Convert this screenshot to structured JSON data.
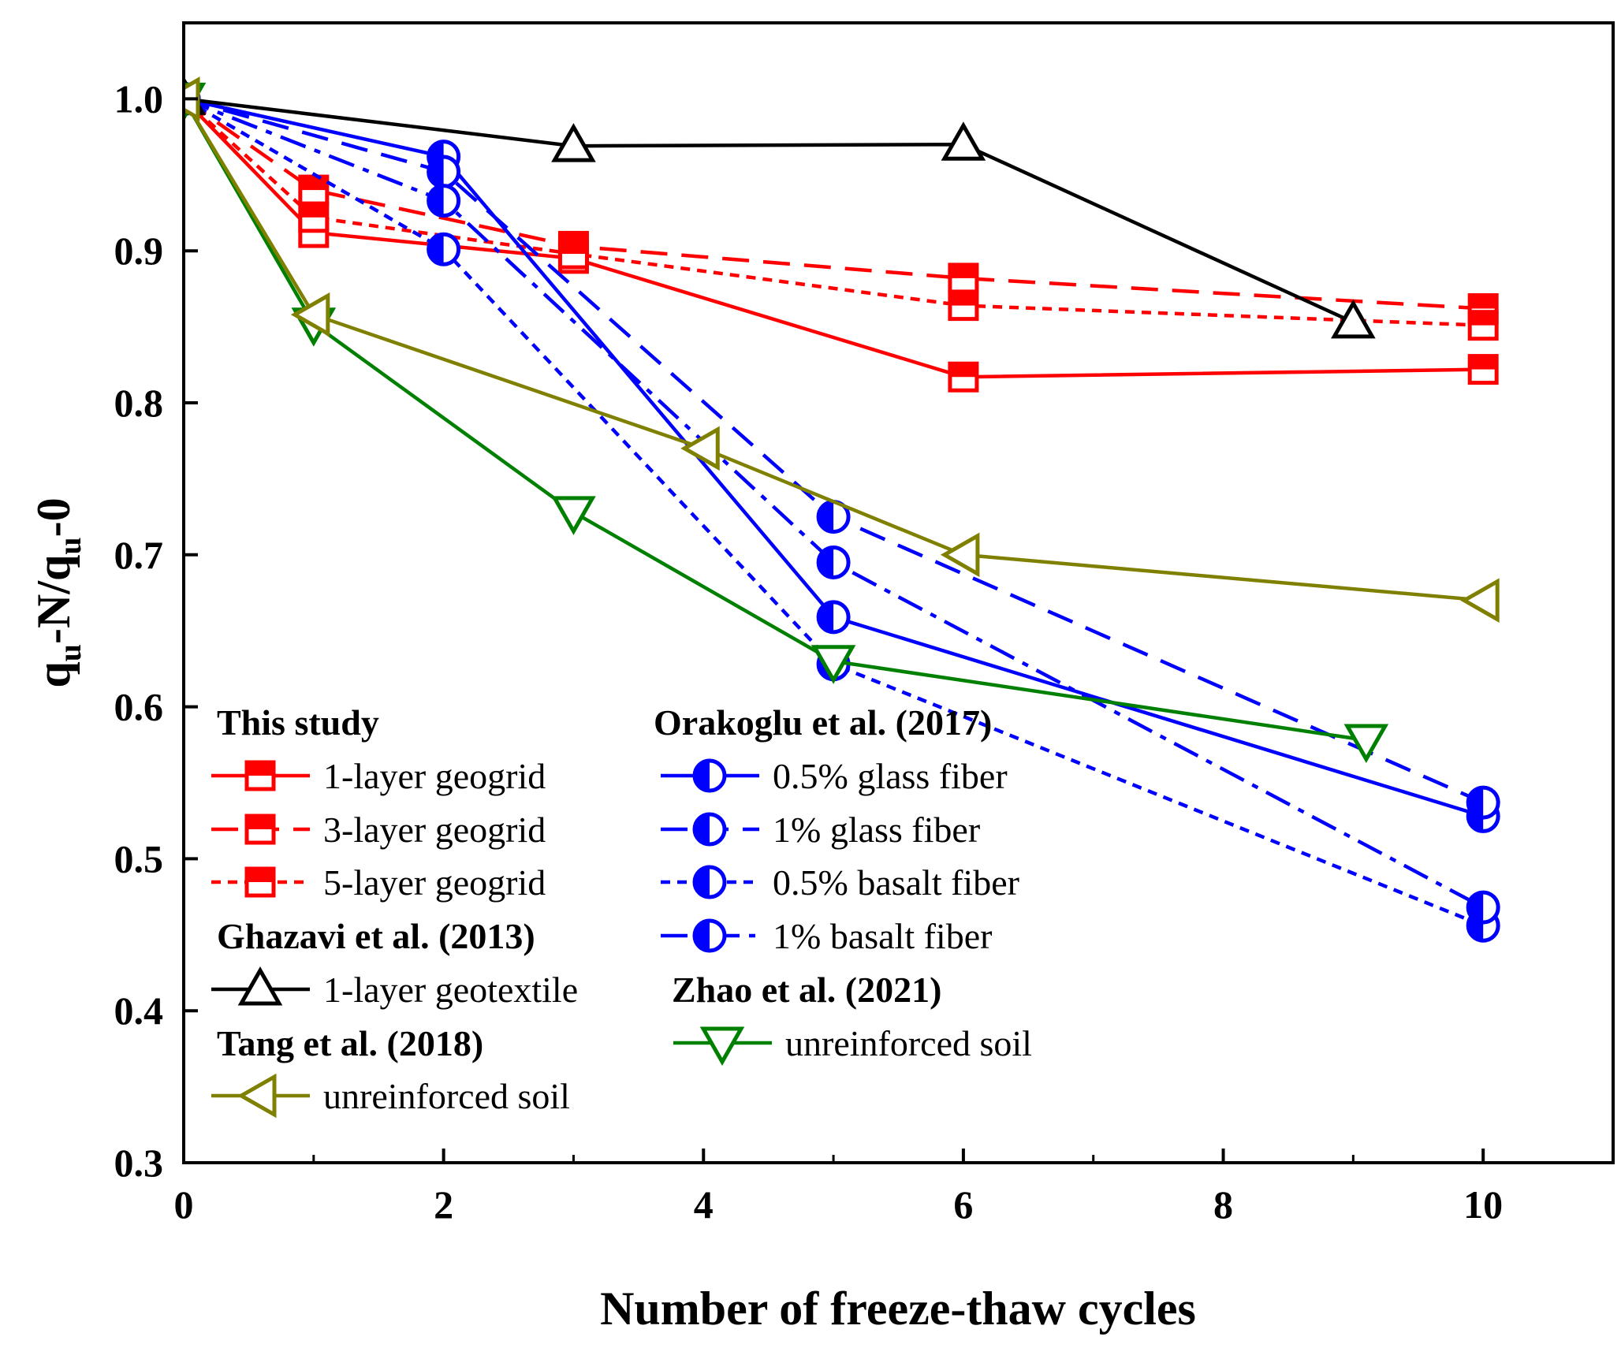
{
  "chart_data": {
    "type": "line",
    "xlabel": "Number of freeze-thaw cycles",
    "ylabel": "q_u-N/q_u-0",
    "ylabel_parts": [
      "q",
      "u",
      "-N/q",
      "u",
      "-0"
    ],
    "xlim": [
      0,
      11
    ],
    "ylim": [
      0.3,
      1.05
    ],
    "x_ticks": [
      0,
      2,
      4,
      6,
      8,
      10
    ],
    "x_tick_labels": [
      "0",
      "2",
      "4",
      "6",
      "8",
      "10"
    ],
    "y_ticks": [
      0.3,
      0.4,
      0.5,
      0.6,
      0.7,
      0.8,
      0.9,
      1.0
    ],
    "y_tick_labels": [
      "0.3",
      "0.4",
      "0.5",
      "0.6",
      "0.7",
      "0.8",
      "0.9",
      "1.0"
    ],
    "grid": false,
    "legend_groups": [
      {
        "title": "This study",
        "series": [
          0,
          1,
          2
        ]
      },
      {
        "title": "Orakoglu et al. (2017)",
        "series": [
          3,
          4,
          5,
          6
        ]
      },
      {
        "title": "Ghazavi et al. (2013)",
        "series": [
          7
        ]
      },
      {
        "title": "Zhao et al. (2021)",
        "series": [
          8
        ]
      },
      {
        "title": "Tang et al. (2018)",
        "series": [
          9
        ]
      }
    ],
    "series": [
      {
        "name": "1-layer geogrid",
        "color": "#ff0000",
        "dash": "solid",
        "marker": "square",
        "x": [
          0,
          1,
          3,
          6,
          10
        ],
        "y": [
          1.0,
          0.912,
          0.895,
          0.817,
          0.822
        ]
      },
      {
        "name": "3-layer geogrid",
        "color": "#ff0000",
        "dash": "dash",
        "marker": "square",
        "x": [
          0,
          1,
          3,
          6,
          10
        ],
        "y": [
          1.0,
          0.94,
          0.903,
          0.882,
          0.862
        ]
      },
      {
        "name": "5-layer geogrid",
        "color": "#ff0000",
        "dash": "dot",
        "marker": "square",
        "x": [
          0,
          1,
          3,
          6,
          10
        ],
        "y": [
          1.0,
          0.922,
          0.898,
          0.864,
          0.851
        ]
      },
      {
        "name": "0.5% glass fiber",
        "color": "#0000ff",
        "dash": "solid",
        "marker": "circle",
        "x": [
          0,
          2,
          5,
          10
        ],
        "y": [
          1.0,
          0.962,
          0.659,
          0.528
        ]
      },
      {
        "name": "1% glass fiber",
        "color": "#0000ff",
        "dash": "dash",
        "marker": "circle",
        "x": [
          0,
          2,
          5,
          10
        ],
        "y": [
          1.0,
          0.952,
          0.725,
          0.537
        ]
      },
      {
        "name": "0.5% basalt fiber",
        "color": "#0000ff",
        "dash": "dot",
        "marker": "circle",
        "x": [
          0,
          2,
          5,
          10
        ],
        "y": [
          1.0,
          0.901,
          0.628,
          0.456
        ]
      },
      {
        "name": "1% basalt fiber",
        "color": "#0000ff",
        "dash": "dashdot",
        "marker": "circle",
        "x": [
          0,
          2,
          5,
          10
        ],
        "y": [
          1.0,
          0.933,
          0.695,
          0.468
        ]
      },
      {
        "name": "1-layer geotextile",
        "color": "#000000",
        "dash": "solid",
        "marker": "triangle-up",
        "x": [
          0,
          3,
          6,
          9
        ],
        "y": [
          1.0,
          0.969,
          0.97,
          0.853
        ]
      },
      {
        "name": "unreinforced soil",
        "color": "#008000",
        "dash": "solid",
        "marker": "triangle-down",
        "x": [
          0,
          1,
          3,
          5,
          9.1
        ],
        "y": [
          1.0,
          0.852,
          0.728,
          0.63,
          0.578
        ]
      },
      {
        "name": "unreinforced soil",
        "color": "#808000",
        "dash": "solid",
        "marker": "triangle-left",
        "x": [
          0,
          1,
          4,
          6,
          10
        ],
        "y": [
          1.0,
          0.858,
          0.77,
          0.7,
          0.67
        ]
      }
    ]
  }
}
